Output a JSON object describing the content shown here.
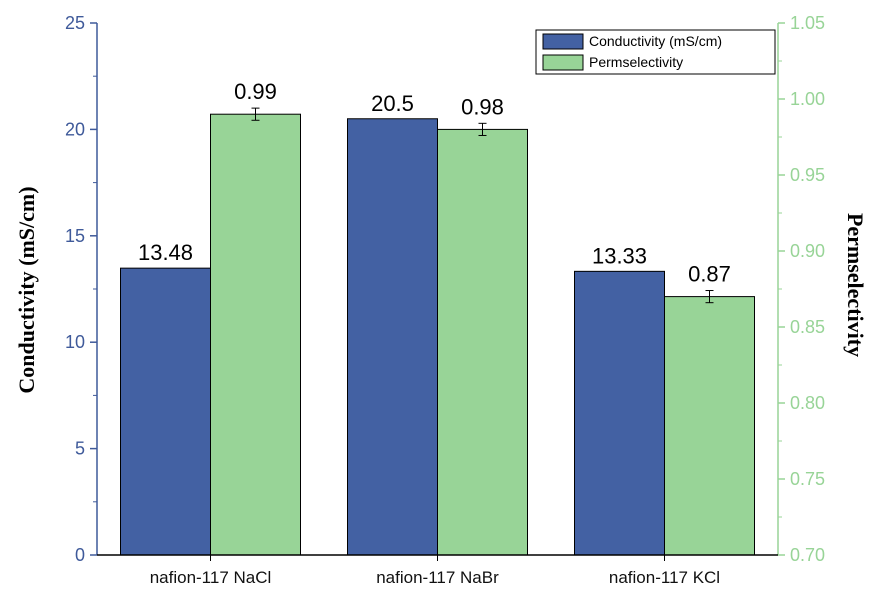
{
  "colors": {
    "conductivity": "#4361a3",
    "permselectivity": "#98d497",
    "left_axis": "#3f5a9a",
    "right_axis": "#98d497"
  },
  "chart_data": {
    "type": "bar",
    "categories": [
      "nafion-117 NaCl",
      "nafion-117 NaBr",
      "nafion-117 KCl"
    ],
    "series": [
      {
        "name": "Conductivity (mS/cm)",
        "axis": "left",
        "values": [
          13.48,
          20.5,
          13.33
        ],
        "labels": [
          "13.48",
          "20.5",
          "13.33"
        ]
      },
      {
        "name": "Permselectivity",
        "axis": "right",
        "values": [
          0.99,
          0.98,
          0.87
        ],
        "labels": [
          "0.99",
          "0.98",
          "0.87"
        ],
        "error": [
          0.004,
          0.004,
          0.004
        ]
      }
    ],
    "ylabel": "Conductivity (mS/cm)",
    "y2label": "Permselectivity",
    "ylim": [
      0,
      25
    ],
    "y2lim": [
      0.7,
      1.05
    ],
    "yticks": [
      "0",
      "5",
      "10",
      "15",
      "20",
      "25"
    ],
    "y2ticks": [
      "0.70",
      "0.75",
      "0.80",
      "0.85",
      "0.90",
      "0.95",
      "1.00",
      "1.05"
    ],
    "legend_position": "top-right",
    "grid": false
  }
}
